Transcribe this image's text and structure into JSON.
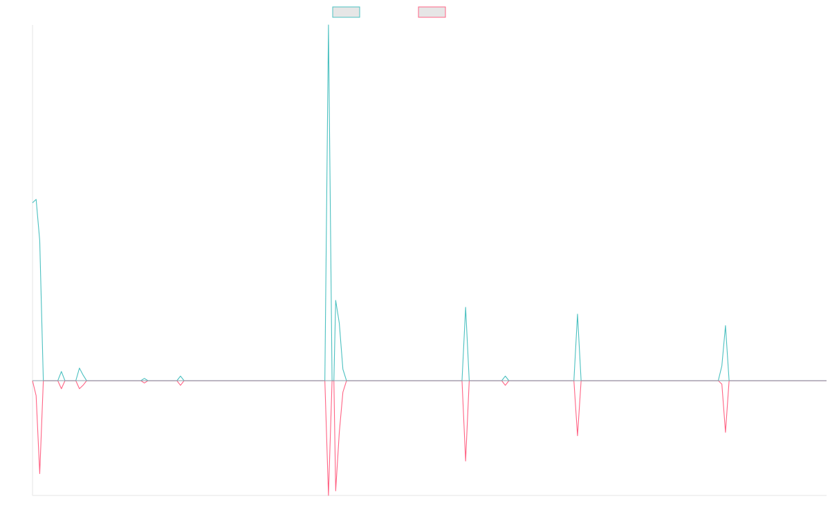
{
  "chart_data": {
    "type": "line",
    "title": "",
    "xlabel": "",
    "ylabel": "",
    "ylim": [
      -1,
      3.1
    ],
    "grid": false,
    "legend_position": "top",
    "x_count": 221,
    "series": [
      {
        "name": "",
        "color": "#4bc0c0",
        "fill": "rgba(201,203,207,0.5)",
        "points": [
          [
            0,
            1.55
          ],
          [
            1,
            1.58
          ],
          [
            2,
            1.22
          ],
          [
            3,
            0.0
          ],
          [
            4,
            0.0
          ],
          [
            5,
            0.0
          ],
          [
            7,
            0.0
          ],
          [
            8,
            0.08
          ],
          [
            9,
            0.0
          ],
          [
            11,
            0.0
          ],
          [
            12,
            0.0
          ],
          [
            13,
            0.11
          ],
          [
            14,
            0.05
          ],
          [
            15,
            0.0
          ],
          [
            30,
            0.0
          ],
          [
            31,
            0.02
          ],
          [
            32,
            0.0
          ],
          [
            40,
            0.0
          ],
          [
            41,
            0.04
          ],
          [
            42,
            0.0
          ],
          [
            81,
            0.0
          ],
          [
            82,
            3.1
          ],
          [
            83,
            0.0
          ],
          [
            83.5,
            0.0
          ],
          [
            84,
            0.7
          ],
          [
            85,
            0.5
          ],
          [
            86,
            0.1
          ],
          [
            87,
            0.0
          ],
          [
            119,
            0.0
          ],
          [
            120,
            0.64
          ],
          [
            121,
            0.0
          ],
          [
            130,
            0.0
          ],
          [
            131,
            0.04
          ],
          [
            132,
            0.0
          ],
          [
            150,
            0.0
          ],
          [
            151,
            0.58
          ],
          [
            152,
            0.0
          ],
          [
            190,
            0.0
          ],
          [
            191,
            0.13
          ],
          [
            192,
            0.48
          ],
          [
            193,
            0.0
          ],
          [
            220,
            0.0
          ]
        ]
      },
      {
        "name": "",
        "color": "#ff6384",
        "fill": "rgba(201,203,207,0.5)",
        "points": [
          [
            0,
            0.0
          ],
          [
            1,
            -0.13
          ],
          [
            2,
            -0.81
          ],
          [
            3,
            0.0
          ],
          [
            5,
            0.0
          ],
          [
            7,
            0.0
          ],
          [
            8,
            -0.07
          ],
          [
            9,
            0.0
          ],
          [
            11,
            0.0
          ],
          [
            12,
            0.0
          ],
          [
            13,
            -0.07
          ],
          [
            14,
            -0.04
          ],
          [
            15,
            0.0
          ],
          [
            30,
            0.0
          ],
          [
            31,
            -0.02
          ],
          [
            32,
            0.0
          ],
          [
            40,
            0.0
          ],
          [
            41,
            -0.04
          ],
          [
            42,
            0.0
          ],
          [
            81,
            0.0
          ],
          [
            82,
            -1.0
          ],
          [
            83,
            0.0
          ],
          [
            83.5,
            0.0
          ],
          [
            84,
            -0.96
          ],
          [
            85,
            -0.45
          ],
          [
            86,
            -0.1
          ],
          [
            87,
            0.0
          ],
          [
            119,
            0.0
          ],
          [
            120,
            -0.7
          ],
          [
            121,
            0.0
          ],
          [
            130,
            0.0
          ],
          [
            131,
            -0.04
          ],
          [
            132,
            0.0
          ],
          [
            150,
            0.0
          ],
          [
            151,
            -0.48
          ],
          [
            152,
            0.0
          ],
          [
            190,
            0.0
          ],
          [
            191,
            -0.03
          ],
          [
            192,
            -0.45
          ],
          [
            193,
            0.0
          ],
          [
            220,
            0.0
          ]
        ]
      }
    ]
  }
}
